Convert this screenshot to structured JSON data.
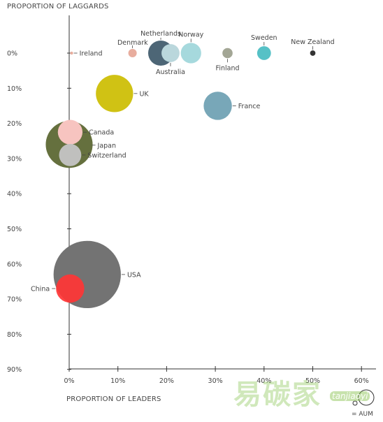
{
  "chart_data": {
    "type": "scatter",
    "title": "",
    "ylabel": "PROPORTION OF LAGGARDS",
    "xlabel": "PROPORTION OF LEADERS",
    "x_ticks": [
      "0%",
      "10%",
      "20%",
      "30%",
      "40%",
      "50%",
      "60%"
    ],
    "y_ticks": [
      "0%",
      "10%",
      "20%",
      "30%",
      "40%",
      "50%",
      "60%",
      "70%",
      "80%",
      "90%"
    ],
    "xlim": [
      0,
      62
    ],
    "ylim": [
      0,
      90
    ],
    "size_legend": {
      "label": "= AUM"
    },
    "points": [
      {
        "name": "Ireland",
        "x": 0.5,
        "y": 0,
        "size": 0.5,
        "color": "#e8ad9e",
        "label_side": "right"
      },
      {
        "name": "Denmark",
        "x": 13,
        "y": 0,
        "size": 1.4,
        "color": "#e8ad9e",
        "label_side": "top-left"
      },
      {
        "name": "Netherlands",
        "x": 18.8,
        "y": 0,
        "size": 4.2,
        "color": "#4d6676",
        "label_side": "top"
      },
      {
        "name": "Australia",
        "x": 20.8,
        "y": 0,
        "size": 3.0,
        "color": "#bad7dc",
        "label_side": "bottom"
      },
      {
        "name": "Norway",
        "x": 25,
        "y": 0,
        "size": 3.4,
        "color": "#a6d9dd",
        "label_side": "top"
      },
      {
        "name": "Finland",
        "x": 32.5,
        "y": 0,
        "size": 1.7,
        "color": "#a3a695",
        "label_side": "bottom"
      },
      {
        "name": "Sweden",
        "x": 40,
        "y": 0,
        "size": 2.3,
        "color": "#56c1c6",
        "label_side": "top"
      },
      {
        "name": "New Zealand",
        "x": 50,
        "y": 0,
        "size": 0.9,
        "color": "#333333",
        "label_side": "top"
      },
      {
        "name": "UK",
        "x": 9.3,
        "y": 11.5,
        "size": 6.2,
        "color": "#d0c214",
        "label_side": "right"
      },
      {
        "name": "France",
        "x": 30.5,
        "y": 15,
        "size": 4.7,
        "color": "#78a7b8",
        "label_side": "right"
      },
      {
        "name": "Japan",
        "x": 0,
        "y": 26,
        "size": 7.8,
        "color": "#65703e",
        "label_side": "right"
      },
      {
        "name": "Canada",
        "x": 0.2,
        "y": 22.5,
        "size": 4.1,
        "color": "#f7c4c0",
        "label_side": "right"
      },
      {
        "name": "Switzerland",
        "x": 0.2,
        "y": 29,
        "size": 3.7,
        "color": "#c0c0be",
        "label_side": "right"
      },
      {
        "name": "USA",
        "x": 3.7,
        "y": 63,
        "size": 11.2,
        "color": "#737373",
        "label_side": "right"
      },
      {
        "name": "China",
        "x": 0.2,
        "y": 67,
        "size": 4.7,
        "color": "#ff3535",
        "label_side": "left"
      }
    ]
  },
  "watermark": {
    "text": "易碳家",
    "sub": "tanjiaoyi"
  }
}
